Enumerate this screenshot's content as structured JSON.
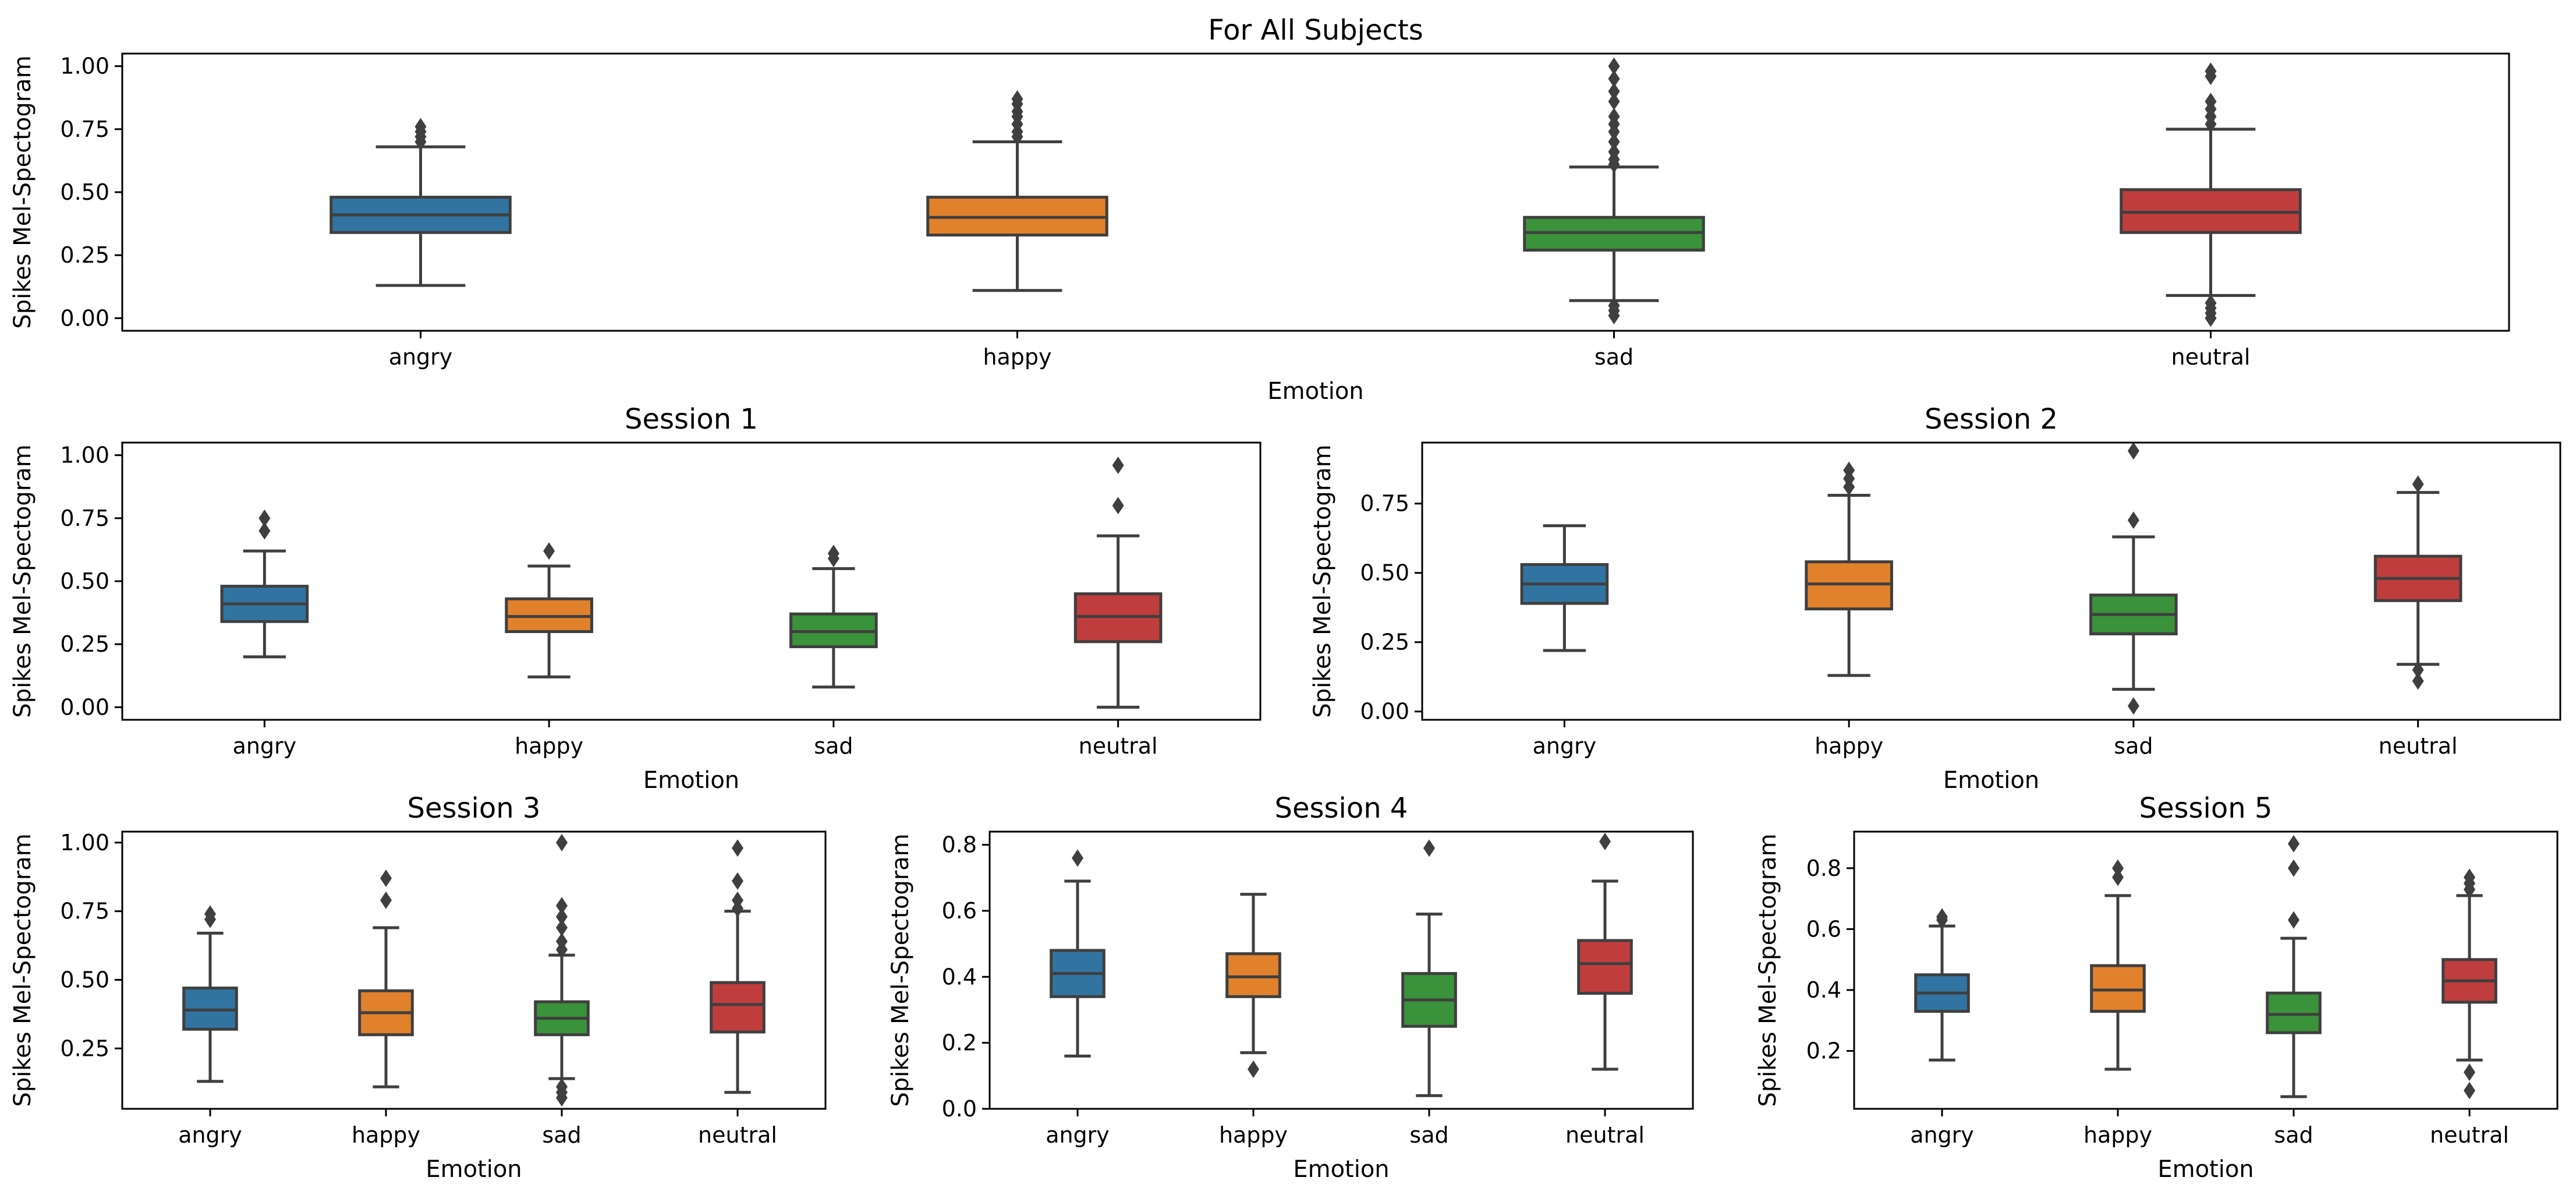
{
  "colors": {
    "angry": "#3274a1",
    "happy": "#e1812c",
    "sad": "#3a923a",
    "neutral": "#c03d3e",
    "box_edge": "#3f3f3f"
  },
  "chart_data": [
    {
      "type": "box",
      "title": "For All Subjects",
      "xlabel": "Emotion",
      "ylabel": "Spikes Mel-Spectogram",
      "categories": [
        "angry",
        "happy",
        "sad",
        "neutral"
      ],
      "ylim": [
        -0.05,
        1.05
      ],
      "yticks": [
        "0.00",
        "0.25",
        "0.50",
        "0.75",
        "1.00"
      ],
      "grid": false,
      "boxes": [
        {
          "min": 0.13,
          "q1": 0.34,
          "median": 0.41,
          "q3": 0.48,
          "max": 0.68,
          "fliers": [
            0.7,
            0.72,
            0.74,
            0.76
          ]
        },
        {
          "min": 0.11,
          "q1": 0.33,
          "median": 0.4,
          "q3": 0.48,
          "max": 0.7,
          "fliers": [
            0.72,
            0.74,
            0.77,
            0.8,
            0.82,
            0.85,
            0.87
          ]
        },
        {
          "min": 0.07,
          "q1": 0.27,
          "median": 0.34,
          "q3": 0.4,
          "max": 0.6,
          "fliers": [
            0.01,
            0.03,
            0.05,
            0.61,
            0.63,
            0.66,
            0.7,
            0.74,
            0.77,
            0.8,
            0.86,
            0.9,
            0.95,
            1.0
          ]
        },
        {
          "min": 0.09,
          "q1": 0.34,
          "median": 0.42,
          "q3": 0.51,
          "max": 0.75,
          "fliers": [
            0.0,
            0.02,
            0.04,
            0.06,
            0.77,
            0.8,
            0.83,
            0.86,
            0.96,
            0.98
          ]
        }
      ]
    },
    {
      "type": "box",
      "title": "Session 1",
      "xlabel": "Emotion",
      "ylabel": "Spikes Mel-Spectogram",
      "categories": [
        "angry",
        "happy",
        "sad",
        "neutral"
      ],
      "ylim": [
        -0.05,
        1.05
      ],
      "yticks": [
        "0.00",
        "0.25",
        "0.50",
        "0.75",
        "1.00"
      ],
      "grid": false,
      "boxes": [
        {
          "min": 0.2,
          "q1": 0.34,
          "median": 0.41,
          "q3": 0.48,
          "max": 0.62,
          "fliers": [
            0.7,
            0.75
          ]
        },
        {
          "min": 0.12,
          "q1": 0.3,
          "median": 0.36,
          "q3": 0.43,
          "max": 0.56,
          "fliers": [
            0.62
          ]
        },
        {
          "min": 0.08,
          "q1": 0.24,
          "median": 0.3,
          "q3": 0.37,
          "max": 0.55,
          "fliers": [
            0.59,
            0.61
          ]
        },
        {
          "min": 0.0,
          "q1": 0.26,
          "median": 0.36,
          "q3": 0.45,
          "max": 0.68,
          "fliers": [
            0.8,
            0.96
          ]
        }
      ]
    },
    {
      "type": "box",
      "title": "Session 2",
      "xlabel": "Emotion",
      "ylabel": "Spikes Mel-Spectogram",
      "categories": [
        "angry",
        "happy",
        "sad",
        "neutral"
      ],
      "ylim": [
        -0.03,
        0.97
      ],
      "yticks": [
        "0.00",
        "0.25",
        "0.50",
        "0.75"
      ],
      "grid": false,
      "boxes": [
        {
          "min": 0.22,
          "q1": 0.39,
          "median": 0.46,
          "q3": 0.53,
          "max": 0.67,
          "fliers": []
        },
        {
          "min": 0.13,
          "q1": 0.37,
          "median": 0.46,
          "q3": 0.54,
          "max": 0.78,
          "fliers": [
            0.81,
            0.84,
            0.87
          ]
        },
        {
          "min": 0.08,
          "q1": 0.28,
          "median": 0.35,
          "q3": 0.42,
          "max": 0.63,
          "fliers": [
            0.02,
            0.69,
            0.94
          ]
        },
        {
          "min": 0.17,
          "q1": 0.4,
          "median": 0.48,
          "q3": 0.56,
          "max": 0.79,
          "fliers": [
            0.11,
            0.15,
            0.82
          ]
        }
      ]
    },
    {
      "type": "box",
      "title": "Session 3",
      "xlabel": "Emotion",
      "ylabel": "Spikes Mel-Spectogram",
      "categories": [
        "angry",
        "happy",
        "sad",
        "neutral"
      ],
      "ylim": [
        0.03,
        1.04
      ],
      "yticks": [
        "0.25",
        "0.50",
        "0.75",
        "1.00"
      ],
      "grid": false,
      "boxes": [
        {
          "min": 0.13,
          "q1": 0.32,
          "median": 0.39,
          "q3": 0.47,
          "max": 0.67,
          "fliers": [
            0.72,
            0.74
          ]
        },
        {
          "min": 0.11,
          "q1": 0.3,
          "median": 0.38,
          "q3": 0.46,
          "max": 0.69,
          "fliers": [
            0.79,
            0.87
          ]
        },
        {
          "min": 0.14,
          "q1": 0.3,
          "median": 0.36,
          "q3": 0.42,
          "max": 0.59,
          "fliers": [
            0.07,
            0.09,
            0.11,
            0.61,
            0.64,
            0.69,
            0.73,
            0.77,
            1.0
          ]
        },
        {
          "min": 0.09,
          "q1": 0.31,
          "median": 0.41,
          "q3": 0.49,
          "max": 0.75,
          "fliers": [
            0.76,
            0.79,
            0.86,
            0.98
          ]
        }
      ]
    },
    {
      "type": "box",
      "title": "Session 4",
      "xlabel": "Emotion",
      "ylabel": "Spikes Mel-Spectogram",
      "categories": [
        "angry",
        "happy",
        "sad",
        "neutral"
      ],
      "ylim": [
        0.0,
        0.84
      ],
      "yticks": [
        "0.0",
        "0.2",
        "0.4",
        "0.6",
        "0.8"
      ],
      "grid": false,
      "boxes": [
        {
          "min": 0.16,
          "q1": 0.34,
          "median": 0.41,
          "q3": 0.48,
          "max": 0.69,
          "fliers": [
            0.76
          ]
        },
        {
          "min": 0.17,
          "q1": 0.34,
          "median": 0.4,
          "q3": 0.47,
          "max": 0.65,
          "fliers": [
            0.12
          ]
        },
        {
          "min": 0.04,
          "q1": 0.25,
          "median": 0.33,
          "q3": 0.41,
          "max": 0.59,
          "fliers": [
            0.79
          ]
        },
        {
          "min": 0.12,
          "q1": 0.35,
          "median": 0.44,
          "q3": 0.51,
          "max": 0.69,
          "fliers": [
            0.81
          ]
        }
      ]
    },
    {
      "type": "box",
      "title": "Session 5",
      "xlabel": "Emotion",
      "ylabel": "Spikes Mel-Spectogram",
      "categories": [
        "angry",
        "happy",
        "sad",
        "neutral"
      ],
      "ylim": [
        0.01,
        0.92
      ],
      "yticks": [
        "0.2",
        "0.4",
        "0.6",
        "0.8"
      ],
      "grid": false,
      "boxes": [
        {
          "min": 0.17,
          "q1": 0.33,
          "median": 0.39,
          "q3": 0.45,
          "max": 0.61,
          "fliers": [
            0.63,
            0.64
          ]
        },
        {
          "min": 0.14,
          "q1": 0.33,
          "median": 0.4,
          "q3": 0.48,
          "max": 0.71,
          "fliers": [
            0.77,
            0.8
          ]
        },
        {
          "min": 0.05,
          "q1": 0.26,
          "median": 0.32,
          "q3": 0.39,
          "max": 0.57,
          "fliers": [
            0.63,
            0.8,
            0.88
          ]
        },
        {
          "min": 0.17,
          "q1": 0.36,
          "median": 0.43,
          "q3": 0.5,
          "max": 0.71,
          "fliers": [
            0.07,
            0.13,
            0.73,
            0.75,
            0.77
          ]
        }
      ]
    }
  ]
}
